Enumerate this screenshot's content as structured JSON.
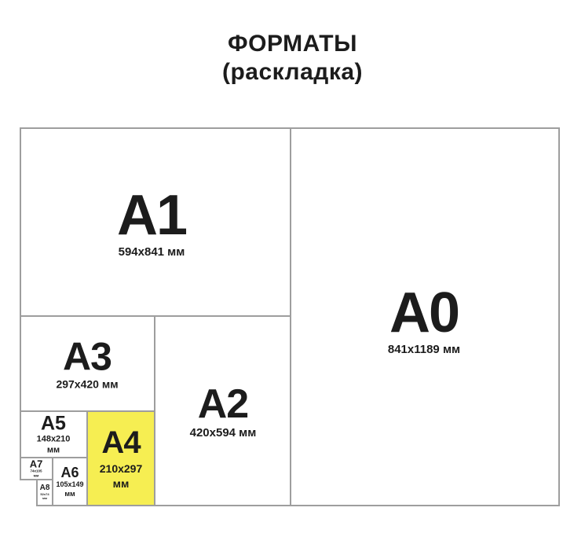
{
  "title": {
    "line1": "ФОРМАТЫ",
    "line2": "(раскладка)"
  },
  "colors": {
    "highlight": "#f6ee52",
    "line": "#9e9e9e",
    "text": "#1c1c1c"
  },
  "formats": {
    "a0": {
      "code": "A0",
      "dims": [
        "841x1189 мм"
      ]
    },
    "a1": {
      "code": "A1",
      "dims": [
        "594x841 мм"
      ]
    },
    "a2": {
      "code": "A2",
      "dims": [
        "420x594 мм"
      ]
    },
    "a3": {
      "code": "A3",
      "dims": [
        "297x420 мм"
      ]
    },
    "a4": {
      "code": "A4",
      "dims": [
        "210x297",
        "мм"
      ]
    },
    "a5": {
      "code": "A5",
      "dims": [
        "148x210",
        "мм"
      ]
    },
    "a6": {
      "code": "A6",
      "dims": [
        "105x149",
        "мм"
      ]
    },
    "a7": {
      "code": "A7",
      "dims": [
        "74x105",
        "мм"
      ]
    },
    "a8": {
      "code": "A8",
      "dims": [
        "52x74",
        "мм"
      ]
    }
  }
}
